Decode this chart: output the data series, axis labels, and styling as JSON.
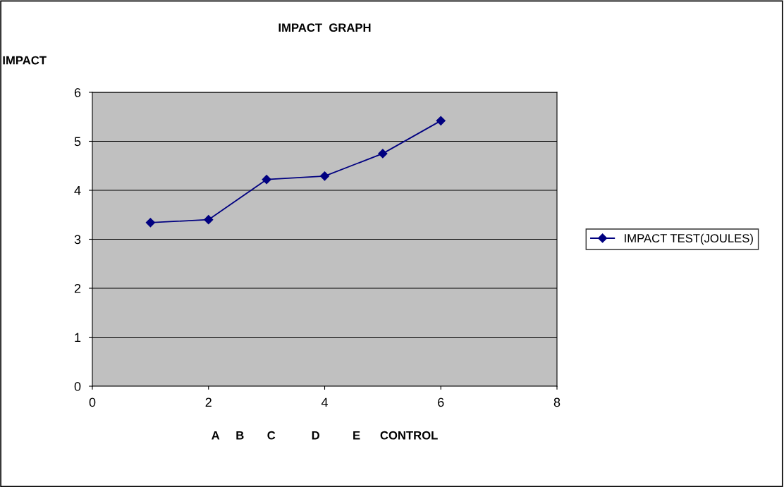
{
  "chart_data": {
    "type": "line",
    "title": "IMPACT  GRAPH",
    "ylabel": "IMPACT",
    "xlabel": "A     B       C           D          E      CONTROL",
    "x": [
      1,
      2,
      3,
      4,
      5,
      6
    ],
    "series": [
      {
        "name": "IMPACT TEST(JOULES)",
        "color": "#000080",
        "values": [
          3.34,
          3.4,
          4.22,
          4.29,
          4.75,
          5.42
        ]
      }
    ],
    "xlim": [
      0,
      8
    ],
    "xticks": [
      0,
      2,
      4,
      6,
      8
    ],
    "ylim": [
      0,
      6
    ],
    "yticks": [
      0,
      1,
      2,
      3,
      4,
      5,
      6
    ],
    "grid": "y",
    "legend": "right",
    "marker": "diamond",
    "line_style": "solid"
  }
}
